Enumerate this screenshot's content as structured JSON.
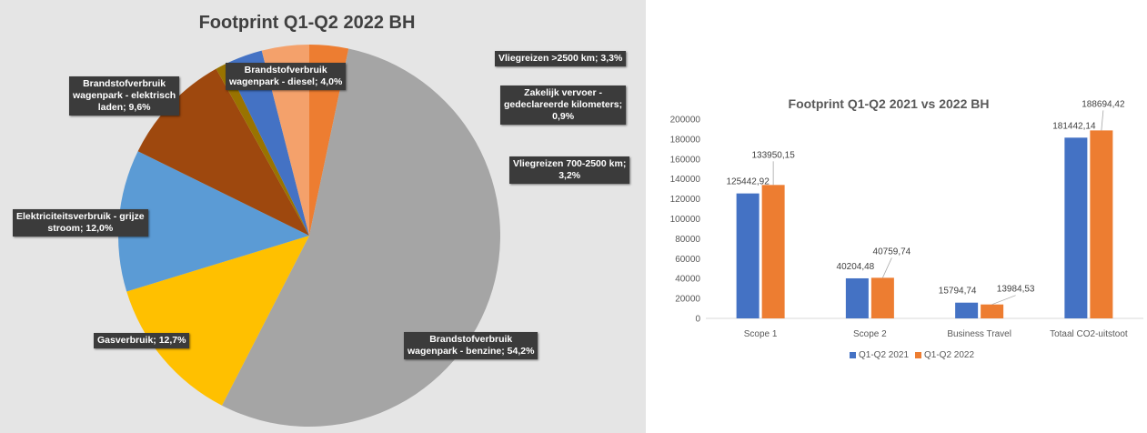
{
  "chart_data": [
    {
      "type": "pie",
      "title": "Footprint Q1-Q2 2022 BH",
      "slices": [
        {
          "label_lines": [
            "Vliegreizen >2500 km; 3,3%"
          ],
          "value": 3.3,
          "color": "#ed7d31"
        },
        {
          "label_lines": [
            "Brandstofverbruik",
            "wagenpark - benzine; 54,2%"
          ],
          "value": 54.2,
          "color": "#a5a5a5"
        },
        {
          "label_lines": [
            "Gasverbruik; 12,7%"
          ],
          "value": 12.7,
          "color": "#ffc000"
        },
        {
          "label_lines": [
            "Elektriciteitsverbruik - grijze",
            "stroom; 12,0%"
          ],
          "value": 12.0,
          "color": "#5b9bd5"
        },
        {
          "label_lines": [
            "Brandstofverbruik",
            "wagenpark - elektrisch",
            "laden; 9,6%"
          ],
          "value": 9.6,
          "color": "#9e480e"
        },
        {
          "label_lines": [
            "Zakelijk vervoer -",
            "gedeclareerde kilometers;",
            "0,9%"
          ],
          "value": 0.9,
          "color": "#997300"
        },
        {
          "label_lines": [
            "Vliegreizen 700-2500 km;",
            "3,2%"
          ],
          "value": 3.2,
          "color": "#4472c4"
        },
        {
          "label_lines": [
            "Brandstofverbruik",
            "wagenpark - diesel; 4,0%"
          ],
          "value": 4.0,
          "color": "#f4a16b"
        }
      ]
    },
    {
      "type": "bar",
      "title": "Footprint Q1-Q2 2021 vs 2022  BH",
      "categories": [
        "Scope 1",
        "Scope 2",
        "Business Travel",
        "Totaal CO2-uitstoot"
      ],
      "series": [
        {
          "name": "Q1-Q2 2021",
          "color": "#4472c4",
          "values": [
            125442.92,
            40204.48,
            15794.74,
            181442.14
          ],
          "value_labels": [
            "125442,92",
            "40204,48",
            "15794,74",
            "181442,14"
          ]
        },
        {
          "name": "Q1-Q2 2022",
          "color": "#ed7d31",
          "values": [
            133950.15,
            40759.74,
            13984.53,
            188694.42
          ],
          "value_labels": [
            "133950,15",
            "40759,74",
            "13984,53",
            "188694,42"
          ]
        }
      ],
      "yticks": [
        "0",
        "20000",
        "40000",
        "60000",
        "80000",
        "100000",
        "120000",
        "140000",
        "160000",
        "180000",
        "200000"
      ],
      "ylim": [
        0,
        200000
      ],
      "legend": "bottom",
      "grid": false
    }
  ]
}
